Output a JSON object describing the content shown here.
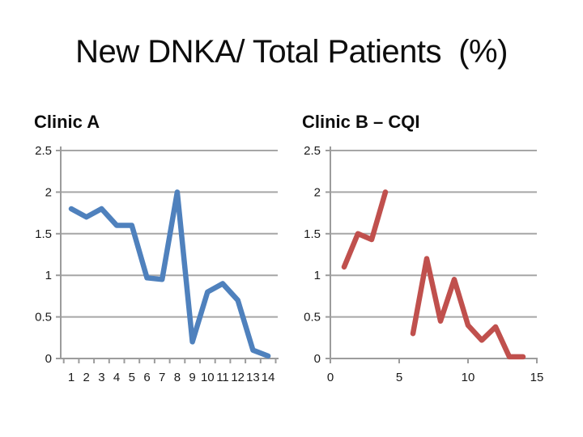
{
  "slide": {
    "title": "New DNKA/ Total Patients  (%)"
  },
  "colors": {
    "grid": "#A6A6A6",
    "axis": "#9C9C9C",
    "text": "#1a1a1a",
    "clinic_a_line": "#4F81BD",
    "clinic_b_line": "#C0504D"
  },
  "chart_data": [
    {
      "type": "line",
      "title": "Clinic A",
      "categories": [
        "1",
        "2",
        "3",
        "4",
        "5",
        "6",
        "7",
        "8",
        "9",
        "10",
        "11",
        "12",
        "13",
        "14"
      ],
      "series": [
        {
          "name": "Clinic A",
          "color": "#4F81BD",
          "values": [
            1.8,
            1.7,
            1.8,
            1.6,
            1.6,
            0.97,
            0.95,
            2.0,
            0.2,
            0.8,
            0.9,
            0.7,
            0.1,
            0.03
          ]
        }
      ],
      "xlabel": "",
      "ylabel": "",
      "ylim": [
        0,
        2.5
      ],
      "yticks": [
        0,
        0.5,
        1,
        1.5,
        2,
        2.5
      ],
      "ytick_labels": [
        "0",
        "0.5",
        "1",
        "1.5",
        "2",
        "2.5"
      ],
      "grid": true,
      "legend_position": "none"
    },
    {
      "type": "line",
      "title": "Clinic B – CQI",
      "x": [
        1,
        2,
        3,
        4,
        5,
        6,
        7,
        8,
        9,
        10,
        11,
        12,
        13,
        14
      ],
      "series": [
        {
          "name": "Clinic B – CQI",
          "color": "#C0504D",
          "values": [
            1.1,
            1.5,
            1.43,
            2.0,
            null,
            0.3,
            1.2,
            0.45,
            0.95,
            0.4,
            0.22,
            0.38,
            0.02,
            0.02
          ]
        }
      ],
      "xlabel": "",
      "ylabel": "",
      "xlim": [
        0,
        15
      ],
      "xticks": [
        0,
        5,
        10,
        15
      ],
      "xtick_labels": [
        "0",
        "5",
        "10",
        "15"
      ],
      "ylim": [
        0,
        2.5
      ],
      "yticks": [
        0,
        0.5,
        1,
        1.5,
        2,
        2.5
      ],
      "ytick_labels": [
        "0",
        "0.5",
        "1",
        "1.5",
        "2",
        "2.5"
      ],
      "grid": true,
      "legend_position": "none"
    }
  ]
}
